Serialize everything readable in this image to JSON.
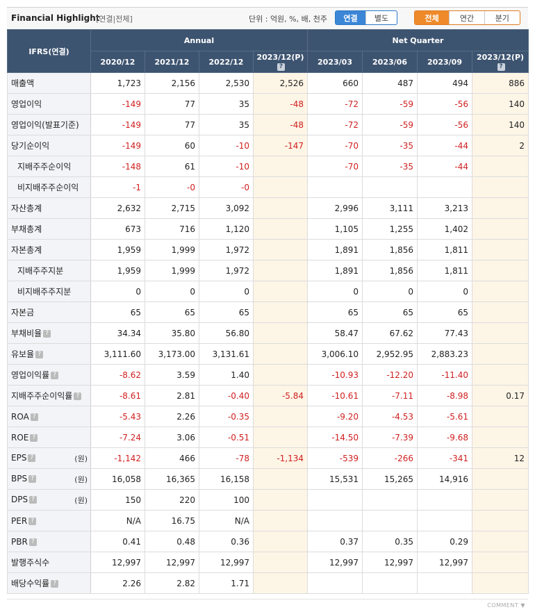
{
  "header": {
    "title": "Financial Highlight",
    "subtitle": "[연결|전체]",
    "unit": "단위 : 억원, %, 배, 천주",
    "consolidation_buttons": [
      {
        "label": "연결",
        "active": true
      },
      {
        "label": "별도",
        "active": false
      }
    ],
    "period_buttons": [
      {
        "label": "전체",
        "active": true
      },
      {
        "label": "연간",
        "active": false
      },
      {
        "label": "분기",
        "active": false
      }
    ]
  },
  "table": {
    "corner_label": "IFRS(연결)",
    "group_annual": "Annual",
    "group_quarter": "Net Quarter",
    "help_glyph": "?",
    "columns": [
      "2020/12",
      "2021/12",
      "2022/12",
      "2023/12(P)",
      "2023/03",
      "2023/06",
      "2023/09",
      "2023/12(P)"
    ],
    "rows": [
      {
        "label": "매출액",
        "unit": "",
        "help": false,
        "indent": false,
        "values": [
          "1,723",
          "2,156",
          "2,530",
          "2,526",
          "660",
          "487",
          "494",
          "886"
        ]
      },
      {
        "label": "영업이익",
        "unit": "",
        "help": false,
        "indent": false,
        "values": [
          "-149",
          "77",
          "35",
          "-48",
          "-72",
          "-59",
          "-56",
          "140"
        ]
      },
      {
        "label": "영업이익(발표기준)",
        "unit": "",
        "help": false,
        "indent": false,
        "values": [
          "-149",
          "77",
          "35",
          "-48",
          "-72",
          "-59",
          "-56",
          "140"
        ]
      },
      {
        "label": "당기순이익",
        "unit": "",
        "help": false,
        "indent": false,
        "values": [
          "-149",
          "60",
          "-10",
          "-147",
          "-70",
          "-35",
          "-44",
          "2"
        ]
      },
      {
        "label": "지배주주순이익",
        "unit": "",
        "help": false,
        "indent": true,
        "values": [
          "-148",
          "61",
          "-10",
          "",
          "-70",
          "-35",
          "-44",
          ""
        ]
      },
      {
        "label": "비지배주주순이익",
        "unit": "",
        "help": false,
        "indent": true,
        "values": [
          "-1",
          "-0",
          "-0",
          "",
          "",
          "",
          "",
          ""
        ]
      },
      {
        "label": "자산총계",
        "unit": "",
        "help": false,
        "indent": false,
        "values": [
          "2,632",
          "2,715",
          "3,092",
          "",
          "2,996",
          "3,111",
          "3,213",
          ""
        ]
      },
      {
        "label": "부채총계",
        "unit": "",
        "help": false,
        "indent": false,
        "values": [
          "673",
          "716",
          "1,120",
          "",
          "1,105",
          "1,255",
          "1,402",
          ""
        ]
      },
      {
        "label": "자본총계",
        "unit": "",
        "help": false,
        "indent": false,
        "values": [
          "1,959",
          "1,999",
          "1,972",
          "",
          "1,891",
          "1,856",
          "1,811",
          ""
        ]
      },
      {
        "label": "지배주주지분",
        "unit": "",
        "help": false,
        "indent": true,
        "values": [
          "1,959",
          "1,999",
          "1,972",
          "",
          "1,891",
          "1,856",
          "1,811",
          ""
        ]
      },
      {
        "label": "비지배주주지분",
        "unit": "",
        "help": false,
        "indent": true,
        "values": [
          "0",
          "0",
          "0",
          "",
          "0",
          "0",
          "0",
          ""
        ]
      },
      {
        "label": "자본금",
        "unit": "",
        "help": false,
        "indent": false,
        "values": [
          "65",
          "65",
          "65",
          "",
          "65",
          "65",
          "65",
          ""
        ]
      },
      {
        "label": "부채비율",
        "unit": "",
        "help": true,
        "indent": false,
        "values": [
          "34.34",
          "35.80",
          "56.80",
          "",
          "58.47",
          "67.62",
          "77.43",
          ""
        ]
      },
      {
        "label": "유보율",
        "unit": "",
        "help": true,
        "indent": false,
        "values": [
          "3,111.60",
          "3,173.00",
          "3,131.61",
          "",
          "3,006.10",
          "2,952.95",
          "2,883.23",
          ""
        ]
      },
      {
        "label": "영업이익률",
        "unit": "",
        "help": true,
        "indent": false,
        "values": [
          "-8.62",
          "3.59",
          "1.40",
          "",
          "-10.93",
          "-12.20",
          "-11.40",
          ""
        ]
      },
      {
        "label": "지배주주순이익률",
        "unit": "",
        "help": true,
        "indent": false,
        "values": [
          "-8.61",
          "2.81",
          "-0.40",
          "-5.84",
          "-10.61",
          "-7.11",
          "-8.98",
          "0.17"
        ]
      },
      {
        "label": "ROA",
        "unit": "",
        "help": true,
        "indent": false,
        "values": [
          "-5.43",
          "2.26",
          "-0.35",
          "",
          "-9.20",
          "-4.53",
          "-5.61",
          ""
        ]
      },
      {
        "label": "ROE",
        "unit": "",
        "help": true,
        "indent": false,
        "values": [
          "-7.24",
          "3.06",
          "-0.51",
          "",
          "-14.50",
          "-7.39",
          "-9.68",
          ""
        ]
      },
      {
        "label": "EPS",
        "unit": "(원)",
        "help": true,
        "indent": false,
        "values": [
          "-1,142",
          "466",
          "-78",
          "-1,134",
          "-539",
          "-266",
          "-341",
          "12"
        ]
      },
      {
        "label": "BPS",
        "unit": "(원)",
        "help": true,
        "indent": false,
        "values": [
          "16,058",
          "16,365",
          "16,158",
          "",
          "15,531",
          "15,265",
          "14,916",
          ""
        ]
      },
      {
        "label": "DPS",
        "unit": "(원)",
        "help": true,
        "indent": false,
        "values": [
          "150",
          "220",
          "100",
          "",
          "",
          "",
          "",
          ""
        ]
      },
      {
        "label": "PER",
        "unit": "",
        "help": true,
        "indent": false,
        "values": [
          "N/A",
          "16.75",
          "N/A",
          "",
          "",
          "",
          "",
          ""
        ]
      },
      {
        "label": "PBR",
        "unit": "",
        "help": true,
        "indent": false,
        "values": [
          "0.41",
          "0.48",
          "0.36",
          "",
          "0.37",
          "0.35",
          "0.29",
          ""
        ]
      },
      {
        "label": "발행주식수",
        "unit": "",
        "help": false,
        "indent": false,
        "values": [
          "12,997",
          "12,997",
          "12,997",
          "",
          "12,997",
          "12,997",
          "12,997",
          ""
        ]
      },
      {
        "label": "배당수익률",
        "unit": "",
        "help": true,
        "indent": false,
        "values": [
          "2.26",
          "2.82",
          "1.71",
          "",
          "",
          "",
          "",
          ""
        ]
      }
    ]
  },
  "footer": {
    "comment_label": "COMMENT ▼"
  },
  "colors": {
    "header_bg": "#3d5470",
    "negative": "#d01f1f",
    "estimate_bg": "#fdf5e6",
    "active_blue": "#3b86d6",
    "active_orange": "#ee8a2a"
  }
}
